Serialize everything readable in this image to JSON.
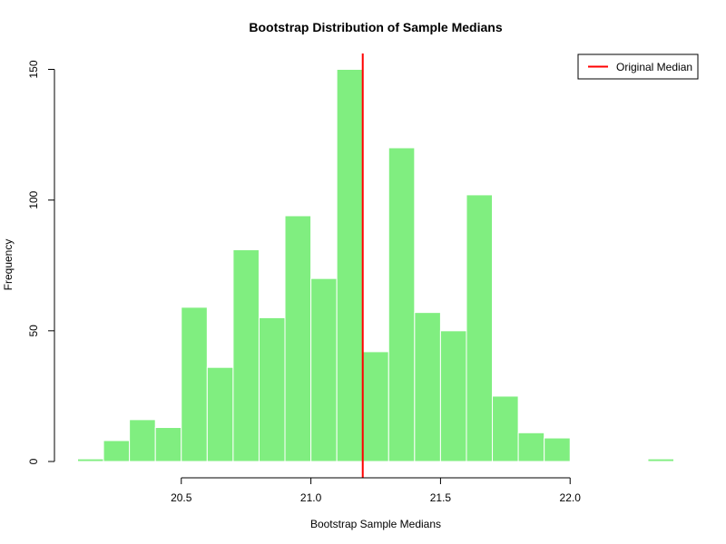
{
  "chart_data": {
    "type": "bar",
    "title": "Bootstrap Distribution of Sample Medians",
    "xlabel": "Bootstrap Sample Medians",
    "ylabel": "Frequency",
    "bin_width": 0.1,
    "bins": [
      {
        "start": 20.1,
        "end": 20.2,
        "count": 1
      },
      {
        "start": 20.2,
        "end": 20.3,
        "count": 8
      },
      {
        "start": 20.3,
        "end": 20.4,
        "count": 16
      },
      {
        "start": 20.4,
        "end": 20.5,
        "count": 13
      },
      {
        "start": 20.5,
        "end": 20.6,
        "count": 59
      },
      {
        "start": 20.6,
        "end": 20.7,
        "count": 36
      },
      {
        "start": 20.7,
        "end": 20.8,
        "count": 81
      },
      {
        "start": 20.8,
        "end": 20.9,
        "count": 55
      },
      {
        "start": 20.9,
        "end": 21.0,
        "count": 94
      },
      {
        "start": 21.0,
        "end": 21.1,
        "count": 70
      },
      {
        "start": 21.1,
        "end": 21.2,
        "count": 150
      },
      {
        "start": 21.2,
        "end": 21.3,
        "count": 42
      },
      {
        "start": 21.3,
        "end": 21.4,
        "count": 120
      },
      {
        "start": 21.4,
        "end": 21.5,
        "count": 57
      },
      {
        "start": 21.5,
        "end": 21.6,
        "count": 50
      },
      {
        "start": 21.6,
        "end": 21.7,
        "count": 102
      },
      {
        "start": 21.7,
        "end": 21.8,
        "count": 25
      },
      {
        "start": 21.8,
        "end": 21.9,
        "count": 11
      },
      {
        "start": 21.9,
        "end": 22.0,
        "count": 9
      },
      {
        "start": 22.0,
        "end": 22.1,
        "count": 0
      },
      {
        "start": 22.1,
        "end": 22.2,
        "count": 0
      },
      {
        "start": 22.2,
        "end": 22.3,
        "count": 0
      },
      {
        "start": 22.3,
        "end": 22.4,
        "count": 1
      }
    ],
    "xlim": [
      20.1,
      22.4
    ],
    "ylim": [
      0,
      150
    ],
    "x_ticks": [
      20.5,
      21.0,
      21.5,
      22.0
    ],
    "x_tick_labels": [
      "20.5",
      "21.0",
      "21.5",
      "22.0"
    ],
    "y_ticks": [
      0,
      50,
      100,
      150
    ],
    "y_tick_labels": [
      "0",
      "50",
      "100",
      "150"
    ],
    "bar_color": "#80ee80",
    "bar_border_color": "#ffffff",
    "reference_line": {
      "x": 21.2,
      "label": "Original Median",
      "color": "#ff0000"
    },
    "legend": {
      "position": "top-right",
      "entries": [
        "Original Median"
      ]
    },
    "grid": false
  }
}
